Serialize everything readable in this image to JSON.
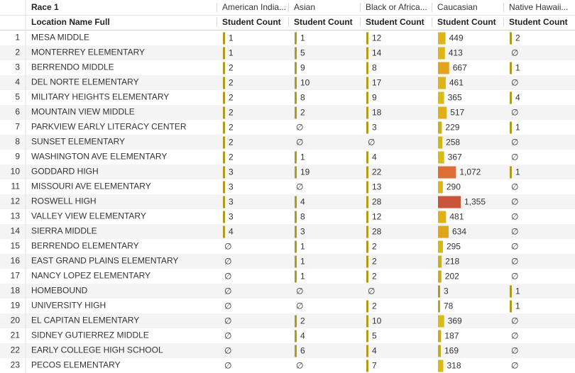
{
  "table": {
    "group_header": "Race 1",
    "row_header": "Location Name Full",
    "null_symbol": "∅",
    "color_scale": [
      "#b09a1c",
      "#dcbc12",
      "#e2a21e",
      "#e07434",
      "#c9553a"
    ],
    "columns": [
      {
        "name": "American India...",
        "measure": "Student Count"
      },
      {
        "name": "Asian",
        "measure": "Student Count"
      },
      {
        "name": "Black or Africa...",
        "measure": "Student Count"
      },
      {
        "name": "Caucasian",
        "measure": "Student Count"
      },
      {
        "name": "Native Hawaii...",
        "measure": "Student Count"
      }
    ],
    "rows": [
      {
        "number": 1,
        "label": "MESA MIDDLE",
        "values": [
          1,
          1,
          12,
          449,
          2
        ]
      },
      {
        "number": 2,
        "label": "MONTERREY ELEMENTARY",
        "values": [
          1,
          5,
          14,
          413,
          null
        ]
      },
      {
        "number": 3,
        "label": "BERRENDO MIDDLE",
        "values": [
          2,
          9,
          8,
          667,
          1
        ]
      },
      {
        "number": 4,
        "label": "DEL NORTE ELEMENTARY",
        "values": [
          2,
          10,
          17,
          461,
          null
        ]
      },
      {
        "number": 5,
        "label": "MILITARY HEIGHTS ELEMENTARY",
        "values": [
          2,
          8,
          9,
          365,
          4
        ]
      },
      {
        "number": 6,
        "label": "MOUNTAIN VIEW MIDDLE",
        "values": [
          2,
          2,
          18,
          517,
          null
        ]
      },
      {
        "number": 7,
        "label": "PARKVIEW EARLY LITERACY CENTER",
        "values": [
          2,
          null,
          3,
          229,
          1
        ]
      },
      {
        "number": 8,
        "label": "SUNSET ELEMENTARY",
        "values": [
          2,
          null,
          null,
          258,
          null
        ]
      },
      {
        "number": 9,
        "label": "WASHINGTON AVE ELEMENTARY",
        "values": [
          2,
          1,
          4,
          367,
          null
        ]
      },
      {
        "number": 10,
        "label": "GODDARD HIGH",
        "values": [
          3,
          19,
          22,
          {
            "value": 1072,
            "label": "1,072"
          },
          1
        ]
      },
      {
        "number": 11,
        "label": "MISSOURI AVE ELEMENTARY",
        "values": [
          3,
          null,
          13,
          290,
          null
        ]
      },
      {
        "number": 12,
        "label": "ROSWELL HIGH",
        "values": [
          3,
          4,
          28,
          {
            "value": 1355,
            "label": "1,355"
          },
          null
        ]
      },
      {
        "number": 13,
        "label": "VALLEY VIEW ELEMENTARY",
        "values": [
          3,
          8,
          12,
          481,
          null
        ]
      },
      {
        "number": 14,
        "label": "SIERRA MIDDLE",
        "values": [
          4,
          3,
          28,
          634,
          null
        ]
      },
      {
        "number": 15,
        "label": "BERRENDO ELEMENTARY",
        "values": [
          null,
          1,
          2,
          295,
          null
        ]
      },
      {
        "number": 16,
        "label": "EAST GRAND PLAINS ELEMENTARY",
        "values": [
          null,
          1,
          2,
          218,
          null
        ]
      },
      {
        "number": 17,
        "label": "NANCY LOPEZ ELEMENTARY",
        "values": [
          null,
          1,
          2,
          202,
          null
        ]
      },
      {
        "number": 18,
        "label": "HOMEBOUND",
        "values": [
          null,
          null,
          null,
          3,
          1
        ]
      },
      {
        "number": 19,
        "label": "UNIVERSITY HIGH",
        "values": [
          null,
          null,
          2,
          78,
          1
        ]
      },
      {
        "number": 20,
        "label": "EL CAPITAN ELEMENTARY",
        "values": [
          null,
          2,
          10,
          369,
          null
        ]
      },
      {
        "number": 21,
        "label": "SIDNEY GUTIERREZ MIDDLE",
        "values": [
          null,
          4,
          5,
          187,
          null
        ]
      },
      {
        "number": 22,
        "label": "EARLY COLLEGE HIGH SCHOOL",
        "values": [
          null,
          6,
          4,
          169,
          null
        ]
      },
      {
        "number": 23,
        "label": "PECOS ELEMENTARY",
        "values": [
          null,
          null,
          7,
          318,
          null
        ]
      }
    ]
  }
}
